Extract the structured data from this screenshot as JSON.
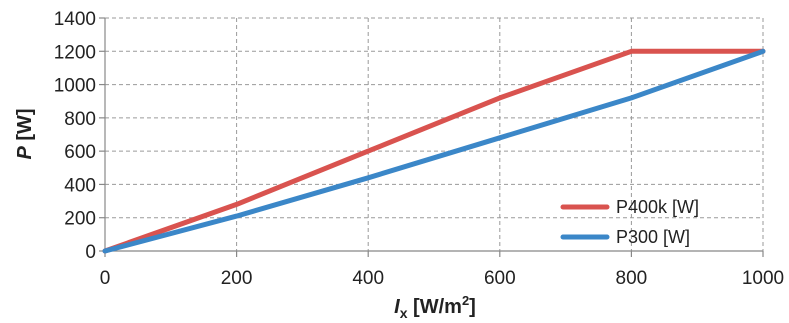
{
  "chart_data": {
    "type": "line",
    "xlabel": {
      "italic": "I",
      "sub": "x",
      "rest": " [W/m",
      "sup": "2",
      "end": "]"
    },
    "ylabel": {
      "italic": "P",
      "rest": " [W]"
    },
    "xlim": [
      0,
      1000
    ],
    "ylim": [
      0,
      1400
    ],
    "xticks": [
      0,
      200,
      400,
      600,
      800,
      1000
    ],
    "yticks": [
      0,
      200,
      400,
      600,
      800,
      1000,
      1200,
      1400
    ],
    "grid": true,
    "legend_position": "bottom-right",
    "series": [
      {
        "name": "P400k [W]",
        "color": "#d9534f",
        "x": [
          0,
          200,
          400,
          600,
          800,
          1000
        ],
        "y": [
          0,
          280,
          600,
          920,
          1200,
          1200
        ]
      },
      {
        "name": "P300 [W]",
        "color": "#3b87c8",
        "x": [
          0,
          200,
          400,
          600,
          800,
          1000
        ],
        "y": [
          0,
          210,
          440,
          680,
          920,
          1200
        ]
      }
    ]
  }
}
